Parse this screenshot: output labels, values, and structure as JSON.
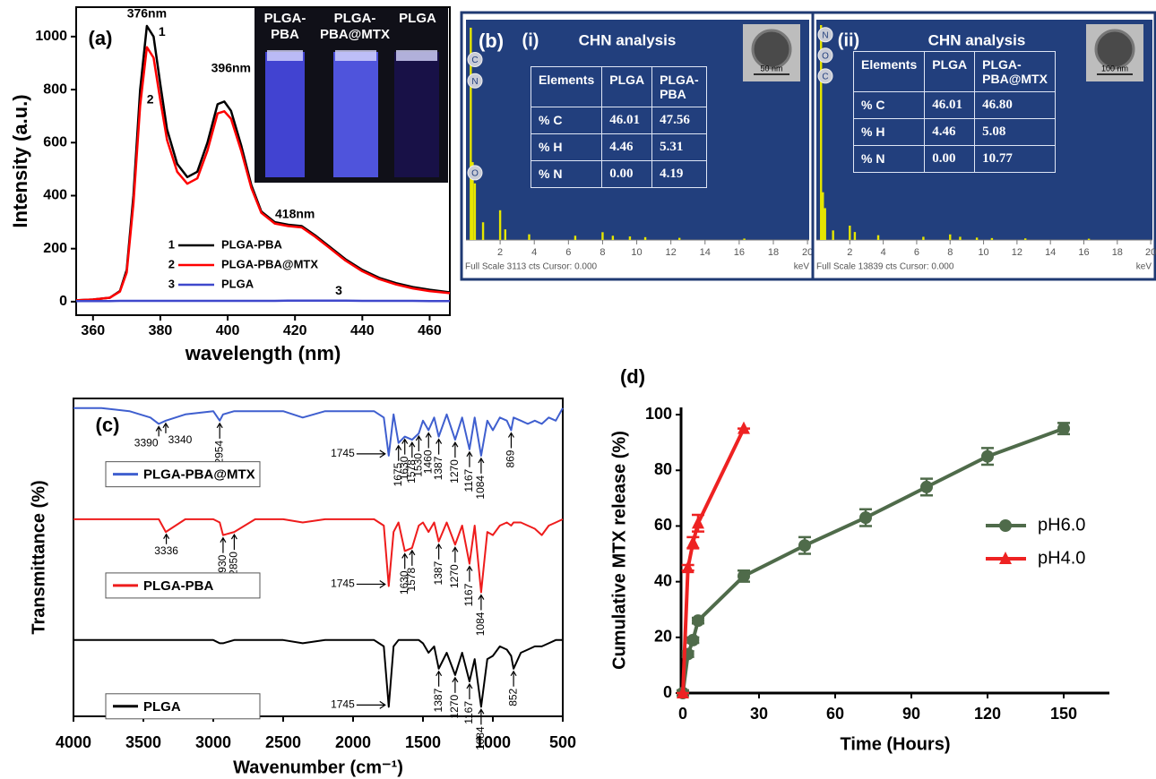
{
  "chart_data": [
    {
      "type": "line",
      "label": "(a)",
      "x_label": "wavelength (nm)",
      "y_label": "Intensity (a.u.)",
      "xlim": [
        355,
        466
      ],
      "ylim": [
        -51,
        1111
      ],
      "xticks": [
        360,
        380,
        400,
        420,
        440,
        460
      ],
      "yticks": [
        0,
        200,
        400,
        600,
        800,
        1000
      ],
      "legend": "lower left",
      "x": [
        355,
        360,
        365,
        368,
        370,
        372,
        374,
        376,
        378,
        380,
        382,
        385,
        388,
        391,
        394,
        397,
        399,
        401,
        404,
        407,
        410,
        414,
        418,
        422,
        426,
        430,
        435,
        440,
        445,
        450,
        455,
        460,
        466
      ],
      "series": [
        {
          "name": "PLGA-PBA",
          "label": "1",
          "color": "#000000",
          "values": [
            5,
            8,
            15,
            40,
            120,
            400,
            800,
            1040,
            1000,
            820,
            650,
            520,
            470,
            490,
            600,
            745,
            755,
            720,
            590,
            440,
            340,
            300,
            290,
            285,
            250,
            210,
            160,
            120,
            90,
            70,
            55,
            45,
            35
          ]
        },
        {
          "name": "PLGA-PBA@MTX",
          "label": "2",
          "color": "#ff0000",
          "values": [
            5,
            8,
            15,
            38,
            110,
            370,
            740,
            960,
            920,
            760,
            610,
            490,
            445,
            465,
            570,
            710,
            718,
            690,
            570,
            430,
            335,
            295,
            285,
            280,
            245,
            205,
            155,
            115,
            85,
            65,
            50,
            40,
            32
          ]
        },
        {
          "name": "PLGA",
          "label": "3",
          "color": "#3f48cc",
          "values": [
            2,
            2,
            2,
            3,
            3,
            3,
            3,
            3,
            3,
            3,
            3,
            3,
            3,
            3,
            3,
            3,
            3,
            3,
            3,
            3,
            3,
            3,
            4,
            4,
            4,
            4,
            4,
            3,
            3,
            3,
            3,
            2,
            2
          ]
        }
      ],
      "annotations": [
        {
          "text": "376nm",
          "x": 376,
          "y": 1085
        },
        {
          "text": "1",
          "x": 380.5,
          "y": 1015
        },
        {
          "text": "2",
          "x": 377,
          "y": 760
        },
        {
          "text": "396nm",
          "x": 401,
          "y": 878
        },
        {
          "text": "418nm",
          "x": 420,
          "y": 328
        },
        {
          "text": "3",
          "x": 433,
          "y": 40
        }
      ],
      "inset_labels": [
        "PLGA-\nPBA",
        "PLGA-\nPBA@MTX",
        "PLGA"
      ]
    },
    {
      "type": "bar",
      "label": "(b)",
      "sublabel": "(i)",
      "title": "CHN analysis",
      "table": {
        "header": [
          "Elements",
          "PLGA",
          "PLGA-\nPBA"
        ],
        "rows": [
          [
            "% C",
            "46.01",
            "47.56"
          ],
          [
            "% H",
            "4.46",
            "5.31"
          ],
          [
            "% N",
            "0.00",
            "4.19"
          ]
        ]
      },
      "xlim": [
        0,
        20.1
      ],
      "xticks": [
        2,
        4,
        6,
        8,
        10,
        12,
        14,
        16,
        18,
        20
      ],
      "x_unit": "keV",
      "ylim": [
        0,
        3113
      ],
      "footer": "Full Scale 3113 cts Cursor: 0.000",
      "color": "#e6e600",
      "x": [
        0.28,
        0.39,
        0.52,
        1.0,
        2.0,
        2.3,
        3.7,
        6.4,
        8.0,
        8.6,
        9.6,
        10.5,
        12.5,
        16.3
      ],
      "values": [
        3000,
        1100,
        800,
        250,
        420,
        150,
        80,
        60,
        110,
        60,
        50,
        40,
        30,
        20
      ],
      "element_labels": [
        {
          "text": "C",
          "y": 2550
        },
        {
          "text": "N",
          "y": 2250
        },
        {
          "text": "O",
          "y": 950
        }
      ],
      "scale_bar": "50 nm"
    },
    {
      "type": "bar",
      "sublabel": "(ii)",
      "title": "CHN analysis",
      "table": {
        "header": [
          "Elements",
          "PLGA",
          "PLGA-\nPBA@MTX"
        ],
        "rows": [
          [
            "% C",
            "46.01",
            "46.80"
          ],
          [
            "% H",
            "4.46",
            "5.08"
          ],
          [
            "% N",
            "0.00",
            "10.77"
          ]
        ]
      },
      "xlim": [
        0,
        20.1
      ],
      "xticks": [
        2,
        4,
        6,
        8,
        10,
        12,
        14,
        16,
        18,
        20
      ],
      "x_unit": "keV",
      "ylim": [
        0,
        13839
      ],
      "footer": "Full Scale 13839 cts Cursor: 0.000",
      "color": "#e6e600",
      "x": [
        0.28,
        0.39,
        0.52,
        1.0,
        2.0,
        2.3,
        3.7,
        6.4,
        8.0,
        8.6,
        9.6,
        10.5,
        12.5,
        16.3
      ],
      "values": [
        13500,
        3000,
        2000,
        600,
        900,
        500,
        300,
        200,
        350,
        200,
        150,
        120,
        100,
        80
      ],
      "element_labels": [
        {
          "text": "N",
          "y": 12900
        },
        {
          "text": "O",
          "y": 11600
        },
        {
          "text": "C",
          "y": 10300
        }
      ],
      "scale_bar": "100 nm"
    },
    {
      "type": "line",
      "label": "(c)",
      "x_label": "Wavenumber (cm⁻¹)",
      "y_label": "Transmittance (%)",
      "xlim": [
        4000,
        500
      ],
      "ylim": [
        0,
        100
      ],
      "xticks": [
        4000,
        3500,
        3000,
        2500,
        2000,
        1500,
        1000,
        500
      ],
      "legend": "inline",
      "x": [
        4000,
        3800,
        3600,
        3450,
        3390,
        3340,
        3200,
        3000,
        2954,
        2930,
        2850,
        2700,
        2500,
        2360,
        2200,
        2000,
        1850,
        1780,
        1745,
        1710,
        1675,
        1630,
        1578,
        1530,
        1500,
        1460,
        1420,
        1387,
        1330,
        1270,
        1220,
        1167,
        1130,
        1084,
        1040,
        1000,
        950,
        900,
        869,
        852,
        800,
        750,
        700,
        650,
        600,
        550,
        500
      ],
      "series": [
        {
          "name": "PLGA-PBA@MTX",
          "color": "#3f5fcf",
          "values": [
            97,
            97,
            96,
            94,
            92,
            93,
            95,
            96,
            93,
            95,
            96,
            96,
            96,
            94,
            96,
            96,
            96,
            94,
            82,
            95,
            86,
            88,
            87,
            89,
            93,
            90,
            94,
            88,
            95,
            87,
            94,
            84,
            94,
            82,
            93,
            90,
            94,
            93,
            90,
            94,
            93,
            92,
            93,
            92,
            94,
            93,
            97
          ],
          "peaks": [
            3390,
            3340,
            2954,
            1745,
            1675,
            1630,
            1578,
            1530,
            1460,
            1387,
            1270,
            1167,
            1084,
            869
          ]
        },
        {
          "name": "PLGA-PBA",
          "color": "#ee1c1c",
          "values": [
            62,
            62,
            62,
            62,
            62,
            58,
            62,
            62,
            61,
            57,
            58,
            62,
            62,
            61,
            62,
            62,
            62,
            60,
            41,
            58,
            61,
            52,
            53,
            60,
            61,
            58,
            61,
            55,
            61,
            54,
            60,
            48,
            60,
            39,
            58,
            57,
            60,
            61,
            60,
            61,
            61,
            60,
            59,
            57,
            60,
            61,
            62
          ],
          "peaks": [
            3336,
            2930,
            2850,
            1745,
            1630,
            1578,
            1387,
            1270,
            1167,
            1084
          ]
        },
        {
          "name": "PLGA",
          "color": "#000000",
          "values": [
            24,
            24,
            24,
            24,
            24,
            24,
            24,
            24,
            23,
            23,
            24,
            24,
            24,
            23,
            24,
            24,
            24,
            22,
            3,
            22,
            24,
            24,
            24,
            24,
            23,
            20,
            22,
            15,
            20,
            13,
            20,
            11,
            18,
            3,
            18,
            19,
            22,
            21,
            19,
            15,
            20,
            21,
            22,
            22,
            23,
            24,
            24
          ],
          "peaks": [
            1745,
            1387,
            1270,
            1167,
            1084,
            852
          ]
        }
      ]
    },
    {
      "type": "line",
      "label": "(d)",
      "x_label": "Time (Hours)",
      "y_label": "Cumulative MTX release (%)",
      "xlim": [
        -0.7,
        168
      ],
      "ylim": [
        0,
        102.6
      ],
      "xticks": [
        0,
        30,
        60,
        90,
        120,
        150
      ],
      "yticks": [
        0,
        20,
        40,
        60,
        80,
        100
      ],
      "legend": "right",
      "series": [
        {
          "name": "pH6.0",
          "color": "#4f6b4a",
          "marker": "circle",
          "x": [
            0,
            2,
            4,
            6,
            24,
            48,
            72,
            96,
            120,
            150
          ],
          "values": [
            0,
            14,
            19,
            26,
            42,
            53,
            63,
            74,
            85,
            95
          ],
          "errors": [
            1,
            1,
            1,
            1,
            2,
            3,
            3,
            3,
            3,
            2
          ]
        },
        {
          "name": "pH4.0",
          "color": "#ee2222",
          "marker": "triangle",
          "x": [
            0,
            2,
            4,
            6,
            24
          ],
          "values": [
            0,
            45,
            54,
            61,
            95
          ],
          "errors": [
            0,
            1,
            2,
            3,
            0
          ]
        }
      ]
    }
  ]
}
